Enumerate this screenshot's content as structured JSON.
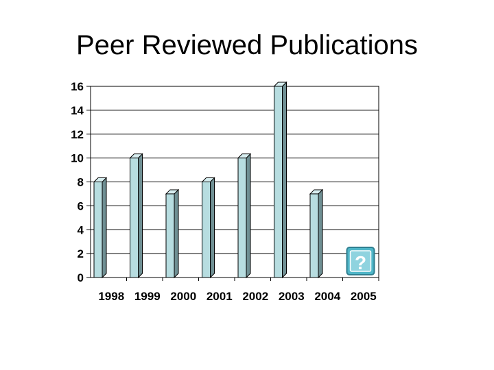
{
  "slide": {
    "title": "Peer Reviewed Publications"
  },
  "chart_data": {
    "type": "bar",
    "title": "",
    "xlabel": "",
    "ylabel": "",
    "categories": [
      "1998",
      "1999",
      "2000",
      "2001",
      "2002",
      "2003",
      "2004",
      "2005"
    ],
    "values": [
      8,
      10,
      7,
      8,
      10,
      16,
      7,
      null
    ],
    "ylim": [
      0,
      16
    ],
    "yticks": [
      "0",
      "2",
      "4",
      "6",
      "8",
      "10",
      "12",
      "14",
      "16"
    ],
    "grid": true,
    "legend": "none",
    "colors": {
      "bar_front": "#b7dde0",
      "bar_side": "#6f8f93",
      "bar_top": "#d7eef0",
      "grid": "#000000"
    },
    "placeholder_icon": "help-question-icon"
  }
}
